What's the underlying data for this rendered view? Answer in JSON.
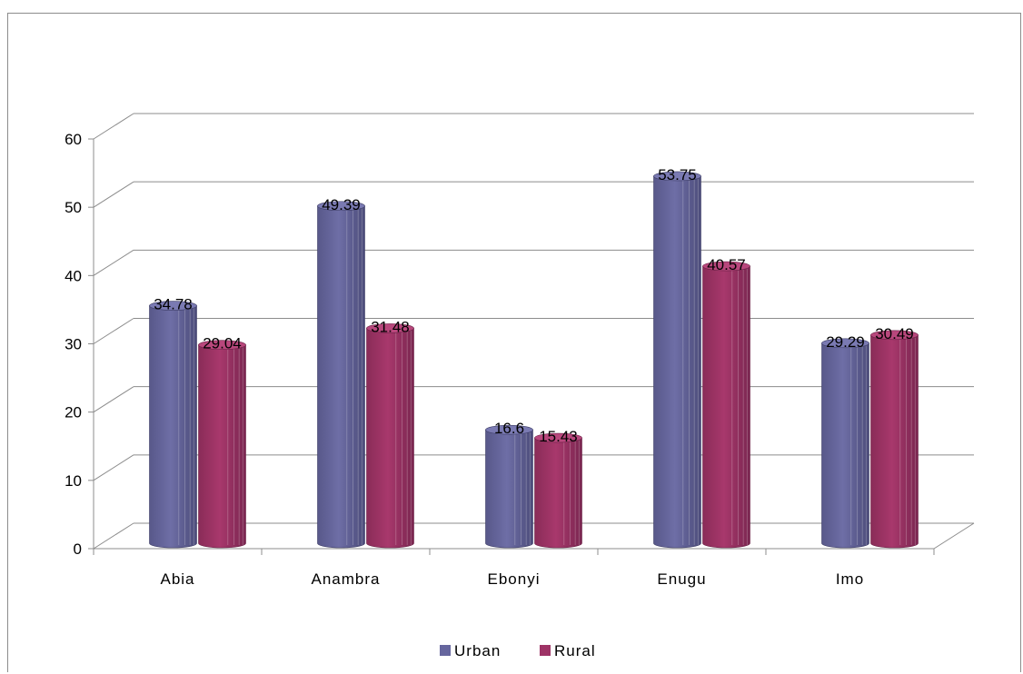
{
  "chart_data": {
    "type": "bar",
    "categories": [
      "Abia",
      "Anambra",
      "Ebonyi",
      "Enugu",
      "Imo"
    ],
    "series": [
      {
        "name": "Urban",
        "values": [
          34.78,
          49.39,
          16.6,
          53.75,
          29.29
        ]
      },
      {
        "name": "Rural",
        "values": [
          29.04,
          31.48,
          15.43,
          40.57,
          30.49
        ]
      }
    ],
    "data_labels": [
      [
        "34.78",
        "49.39",
        "16.6",
        "53.75",
        "29.29"
      ],
      [
        "29.04",
        "31.48",
        "15.43",
        "40.57",
        "30.49"
      ]
    ],
    "y_ticks": [
      "0",
      "10",
      "20",
      "30",
      "40",
      "50",
      "60"
    ],
    "ylim": [
      0,
      60
    ],
    "grid": true,
    "legend_position": "bottom",
    "style": "3d-cylinder",
    "colors": {
      "Urban": "#66669e",
      "Rural": "#9e3366"
    }
  }
}
